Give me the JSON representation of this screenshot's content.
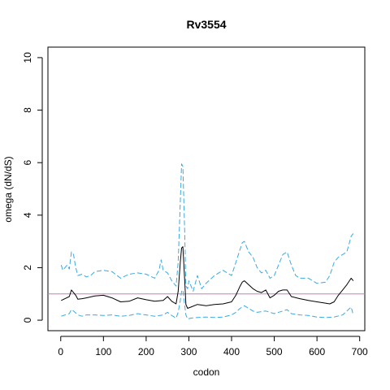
{
  "chart_data": {
    "type": "line",
    "title": "Rv3554",
    "xlabel": "codon",
    "ylabel": "omega (dN/dS)",
    "xlim": [
      -30,
      712
    ],
    "ylim": [
      -0.4,
      10.4
    ],
    "xticks": [
      0,
      100,
      200,
      300,
      400,
      500,
      600,
      700
    ],
    "yticks": [
      0,
      2,
      4,
      6,
      8,
      10
    ],
    "grid": false,
    "legend": "none",
    "reference_line": {
      "y": 1,
      "color": "#cc79c8"
    },
    "series": [
      {
        "role": "estimate",
        "color": "#000000",
        "dash": "solid",
        "x": [
          1,
          10,
          20,
          25,
          30,
          35,
          40,
          50,
          60,
          80,
          100,
          120,
          140,
          160,
          180,
          200,
          220,
          240,
          250,
          260,
          270,
          275,
          280,
          283,
          286,
          290,
          293,
          297,
          305,
          320,
          340,
          360,
          380,
          400,
          410,
          420,
          425,
          430,
          440,
          450,
          460,
          470,
          480,
          490,
          500,
          510,
          520,
          530,
          540,
          560,
          580,
          600,
          620,
          630,
          640,
          650,
          660,
          670,
          680,
          685
        ],
        "y": [
          0.75,
          0.82,
          0.9,
          1.15,
          1.05,
          0.95,
          0.8,
          0.82,
          0.85,
          0.92,
          0.95,
          0.85,
          0.7,
          0.72,
          0.85,
          0.78,
          0.72,
          0.75,
          0.9,
          0.72,
          0.62,
          1.1,
          2.2,
          2.75,
          2.8,
          1.6,
          0.6,
          0.45,
          0.5,
          0.6,
          0.55,
          0.6,
          0.62,
          0.7,
          0.95,
          1.3,
          1.45,
          1.5,
          1.35,
          1.2,
          1.1,
          1.05,
          1.15,
          0.85,
          0.95,
          1.1,
          1.15,
          1.15,
          0.9,
          0.82,
          0.75,
          0.7,
          0.65,
          0.62,
          0.7,
          0.95,
          1.15,
          1.35,
          1.6,
          1.5
        ]
      },
      {
        "role": "upper",
        "color": "#3ba9e0",
        "dash": "dashed",
        "x": [
          1,
          5,
          10,
          15,
          20,
          25,
          30,
          35,
          40,
          50,
          60,
          70,
          80,
          100,
          120,
          140,
          160,
          180,
          200,
          220,
          230,
          235,
          240,
          250,
          260,
          270,
          275,
          280,
          283,
          286,
          290,
          293,
          297,
          300,
          310,
          320,
          330,
          340,
          360,
          380,
          400,
          410,
          420,
          425,
          430,
          440,
          450,
          460,
          470,
          480,
          490,
          500,
          510,
          520,
          530,
          540,
          550,
          560,
          580,
          600,
          620,
          630,
          640,
          650,
          660,
          670,
          680,
          685
        ],
        "y": [
          2.1,
          1.9,
          2.0,
          2.1,
          1.95,
          2.6,
          2.5,
          2.0,
          1.7,
          1.75,
          1.65,
          1.7,
          1.85,
          1.9,
          1.85,
          1.6,
          1.75,
          1.8,
          1.75,
          1.6,
          1.9,
          2.3,
          1.9,
          1.8,
          1.5,
          1.3,
          2.2,
          4.5,
          5.95,
          5.85,
          3.5,
          1.3,
          1.2,
          1.5,
          1.1,
          1.7,
          1.2,
          1.4,
          1.7,
          1.9,
          1.7,
          2.2,
          2.7,
          2.95,
          3.0,
          2.6,
          2.4,
          2.0,
          1.8,
          1.9,
          1.6,
          1.7,
          2.1,
          2.5,
          2.6,
          2.1,
          1.7,
          1.6,
          1.6,
          1.4,
          1.45,
          1.7,
          2.2,
          2.4,
          2.5,
          2.6,
          3.2,
          3.3
        ]
      },
      {
        "role": "lower",
        "color": "#3ba9e0",
        "dash": "dashed",
        "x": [
          1,
          10,
          20,
          25,
          30,
          40,
          50,
          60,
          80,
          100,
          120,
          140,
          160,
          180,
          200,
          220,
          240,
          250,
          260,
          270,
          275,
          280,
          283,
          286,
          290,
          293,
          297,
          305,
          320,
          340,
          360,
          380,
          400,
          410,
          420,
          430,
          440,
          450,
          460,
          480,
          500,
          520,
          530,
          540,
          560,
          580,
          600,
          620,
          640,
          660,
          680,
          685
        ],
        "y": [
          0.15,
          0.2,
          0.25,
          0.4,
          0.35,
          0.2,
          0.15,
          0.2,
          0.2,
          0.18,
          0.2,
          0.15,
          0.18,
          0.25,
          0.2,
          0.15,
          0.2,
          0.3,
          0.18,
          0.08,
          0.3,
          0.75,
          1.1,
          1.15,
          0.6,
          0.2,
          0.05,
          0.08,
          0.1,
          0.12,
          0.1,
          0.12,
          0.2,
          0.3,
          0.45,
          0.55,
          0.45,
          0.35,
          0.3,
          0.35,
          0.25,
          0.35,
          0.4,
          0.25,
          0.2,
          0.18,
          0.12,
          0.1,
          0.12,
          0.2,
          0.5,
          0.2
        ]
      }
    ]
  }
}
